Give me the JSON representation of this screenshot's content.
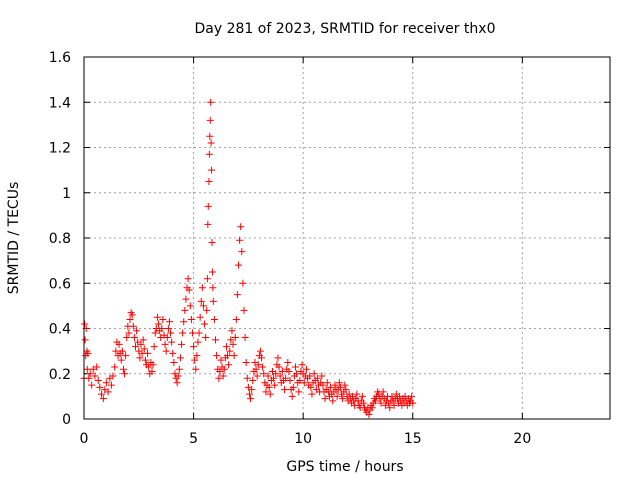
{
  "chart_data": {
    "type": "scatter",
    "title": "Day 281 of 2023, SRMTID for receiver thx0",
    "xlabel": "GPS time / hours",
    "ylabel": "SRMTID / TECUs",
    "xlim": [
      0,
      24
    ],
    "ylim": [
      0,
      1.6
    ],
    "xticks": [
      0,
      5,
      10,
      15,
      20
    ],
    "xtick_labels": [
      "0",
      "5",
      "10",
      "15",
      "20"
    ],
    "yticks": [
      0,
      0.2,
      0.4,
      0.6,
      0.8,
      1,
      1.2,
      1.4,
      1.6
    ],
    "ytick_labels": [
      "0",
      "0.2",
      "0.4",
      "0.6",
      "0.8",
      "1",
      "1.2",
      "1.4",
      "1.6"
    ],
    "grid": true,
    "marker": "+",
    "color": "#ff0000",
    "series": [
      {
        "name": "thx0",
        "points": [
          [
            0.0,
            0.18
          ],
          [
            0.03,
            0.42
          ],
          [
            0.05,
            0.35
          ],
          [
            0.08,
            0.28
          ],
          [
            0.1,
            0.4
          ],
          [
            0.13,
            0.3
          ],
          [
            0.15,
            0.22
          ],
          [
            0.18,
            0.29
          ],
          [
            0.22,
            0.18
          ],
          [
            0.28,
            0.2
          ],
          [
            0.35,
            0.15
          ],
          [
            0.42,
            0.22
          ],
          [
            0.5,
            0.19
          ],
          [
            0.58,
            0.23
          ],
          [
            0.65,
            0.17
          ],
          [
            0.72,
            0.14
          ],
          [
            0.8,
            0.11
          ],
          [
            0.88,
            0.09
          ],
          [
            0.95,
            0.13
          ],
          [
            1.02,
            0.16
          ],
          [
            1.1,
            0.12
          ],
          [
            1.18,
            0.18
          ],
          [
            1.25,
            0.15
          ],
          [
            1.32,
            0.19
          ],
          [
            1.4,
            0.23
          ],
          [
            1.45,
            0.3
          ],
          [
            1.5,
            0.34
          ],
          [
            1.55,
            0.28
          ],
          [
            1.6,
            0.33
          ],
          [
            1.65,
            0.29
          ],
          [
            1.7,
            0.26
          ],
          [
            1.75,
            0.3
          ],
          [
            1.8,
            0.22
          ],
          [
            1.85,
            0.2
          ],
          [
            1.9,
            0.28
          ],
          [
            1.95,
            0.36
          ],
          [
            2.0,
            0.41
          ],
          [
            2.05,
            0.38
          ],
          [
            2.1,
            0.44
          ],
          [
            2.15,
            0.47
          ],
          [
            2.2,
            0.46
          ],
          [
            2.25,
            0.41
          ],
          [
            2.3,
            0.36
          ],
          [
            2.35,
            0.32
          ],
          [
            2.4,
            0.39
          ],
          [
            2.45,
            0.34
          ],
          [
            2.5,
            0.3
          ],
          [
            2.55,
            0.27
          ],
          [
            2.6,
            0.33
          ],
          [
            2.65,
            0.29
          ],
          [
            2.7,
            0.35
          ],
          [
            2.75,
            0.31
          ],
          [
            2.8,
            0.26
          ],
          [
            2.85,
            0.24
          ],
          [
            2.9,
            0.29
          ],
          [
            2.95,
            0.23
          ],
          [
            3.0,
            0.2
          ],
          [
            3.05,
            0.25
          ],
          [
            3.1,
            0.21
          ],
          [
            3.15,
            0.24
          ],
          [
            3.2,
            0.32
          ],
          [
            3.25,
            0.38
          ],
          [
            3.3,
            0.4
          ],
          [
            3.35,
            0.45
          ],
          [
            3.4,
            0.42
          ],
          [
            3.45,
            0.39
          ],
          [
            3.5,
            0.36
          ],
          [
            3.55,
            0.4
          ],
          [
            3.6,
            0.44
          ],
          [
            3.65,
            0.37
          ],
          [
            3.7,
            0.33
          ],
          [
            3.75,
            0.3
          ],
          [
            3.8,
            0.36
          ],
          [
            3.85,
            0.4
          ],
          [
            3.9,
            0.43
          ],
          [
            3.95,
            0.38
          ],
          [
            4.0,
            0.34
          ],
          [
            4.05,
            0.29
          ],
          [
            4.1,
            0.25
          ],
          [
            4.15,
            0.2
          ],
          [
            4.2,
            0.18
          ],
          [
            4.25,
            0.16
          ],
          [
            4.3,
            0.19
          ],
          [
            4.35,
            0.22
          ],
          [
            4.4,
            0.27
          ],
          [
            4.45,
            0.33
          ],
          [
            4.5,
            0.38
          ],
          [
            4.55,
            0.43
          ],
          [
            4.6,
            0.48
          ],
          [
            4.65,
            0.53
          ],
          [
            4.7,
            0.58
          ],
          [
            4.75,
            0.62
          ],
          [
            4.8,
            0.57
          ],
          [
            4.85,
            0.5
          ],
          [
            4.9,
            0.44
          ],
          [
            4.95,
            0.38
          ],
          [
            5.0,
            0.32
          ],
          [
            5.05,
            0.26
          ],
          [
            5.1,
            0.22
          ],
          [
            5.15,
            0.28
          ],
          [
            5.2,
            0.34
          ],
          [
            5.25,
            0.38
          ],
          [
            5.3,
            0.45
          ],
          [
            5.35,
            0.52
          ],
          [
            5.4,
            0.58
          ],
          [
            5.45,
            0.5
          ],
          [
            5.5,
            0.42
          ],
          [
            5.55,
            0.36
          ],
          [
            5.6,
            0.48
          ],
          [
            5.63,
            0.62
          ],
          [
            5.65,
            0.86
          ],
          [
            5.67,
            0.94
          ],
          [
            5.7,
            1.05
          ],
          [
            5.72,
            1.17
          ],
          [
            5.74,
            1.25
          ],
          [
            5.76,
            1.32
          ],
          [
            5.78,
            1.4
          ],
          [
            5.8,
            1.22
          ],
          [
            5.82,
            1.1
          ],
          [
            5.84,
            0.78
          ],
          [
            5.86,
            0.65
          ],
          [
            5.88,
            0.58
          ],
          [
            5.9,
            0.52
          ],
          [
            5.95,
            0.44
          ],
          [
            6.0,
            0.35
          ],
          [
            6.05,
            0.28
          ],
          [
            6.1,
            0.22
          ],
          [
            6.15,
            0.18
          ],
          [
            6.2,
            0.21
          ],
          [
            6.25,
            0.26
          ],
          [
            6.3,
            0.23
          ],
          [
            6.35,
            0.19
          ],
          [
            6.4,
            0.22
          ],
          [
            6.45,
            0.27
          ],
          [
            6.5,
            0.32
          ],
          [
            6.55,
            0.28
          ],
          [
            6.6,
            0.24
          ],
          [
            6.65,
            0.3
          ],
          [
            6.7,
            0.35
          ],
          [
            6.75,
            0.39
          ],
          [
            6.8,
            0.33
          ],
          [
            6.85,
            0.28
          ],
          [
            6.9,
            0.36
          ],
          [
            6.95,
            0.44
          ],
          [
            7.0,
            0.55
          ],
          [
            7.05,
            0.68
          ],
          [
            7.1,
            0.79
          ],
          [
            7.15,
            0.85
          ],
          [
            7.2,
            0.74
          ],
          [
            7.25,
            0.6
          ],
          [
            7.3,
            0.48
          ],
          [
            7.35,
            0.36
          ],
          [
            7.4,
            0.25
          ],
          [
            7.45,
            0.18
          ],
          [
            7.5,
            0.14
          ],
          [
            7.55,
            0.11
          ],
          [
            7.6,
            0.09
          ],
          [
            7.65,
            0.13
          ],
          [
            7.7,
            0.17
          ],
          [
            7.75,
            0.21
          ],
          [
            7.8,
            0.25
          ],
          [
            7.85,
            0.22
          ],
          [
            7.9,
            0.19
          ],
          [
            7.95,
            0.24
          ],
          [
            8.0,
            0.28
          ],
          [
            8.05,
            0.3
          ],
          [
            8.1,
            0.27
          ],
          [
            8.15,
            0.23
          ],
          [
            8.2,
            0.2
          ],
          [
            8.25,
            0.16
          ],
          [
            8.3,
            0.12
          ],
          [
            8.35,
            0.15
          ],
          [
            8.4,
            0.19
          ],
          [
            8.45,
            0.14
          ],
          [
            8.5,
            0.11
          ],
          [
            8.55,
            0.17
          ],
          [
            8.6,
            0.21
          ],
          [
            8.65,
            0.18
          ],
          [
            8.7,
            0.15
          ],
          [
            8.75,
            0.2
          ],
          [
            8.8,
            0.24
          ],
          [
            8.85,
            0.27
          ],
          [
            8.9,
            0.23
          ],
          [
            8.95,
            0.19
          ],
          [
            9.0,
            0.16
          ],
          [
            9.05,
            0.21
          ],
          [
            9.1,
            0.17
          ],
          [
            9.15,
            0.13
          ],
          [
            9.2,
            0.18
          ],
          [
            9.25,
            0.22
          ],
          [
            9.3,
            0.25
          ],
          [
            9.35,
            0.21
          ],
          [
            9.4,
            0.17
          ],
          [
            9.45,
            0.13
          ],
          [
            9.5,
            0.1
          ],
          [
            9.55,
            0.14
          ],
          [
            9.6,
            0.19
          ],
          [
            9.65,
            0.23
          ],
          [
            9.7,
            0.2
          ],
          [
            9.75,
            0.16
          ],
          [
            9.8,
            0.12
          ],
          [
            9.85,
            0.17
          ],
          [
            9.9,
            0.21
          ],
          [
            9.95,
            0.24
          ],
          [
            10.0,
            0.2
          ],
          [
            10.05,
            0.16
          ],
          [
            10.1,
            0.19
          ],
          [
            10.15,
            0.22
          ],
          [
            10.2,
            0.18
          ],
          [
            10.25,
            0.15
          ],
          [
            10.3,
            0.19
          ],
          [
            10.35,
            0.14
          ],
          [
            10.4,
            0.11
          ],
          [
            10.45,
            0.16
          ],
          [
            10.5,
            0.2
          ],
          [
            10.55,
            0.17
          ],
          [
            10.6,
            0.13
          ],
          [
            10.65,
            0.18
          ],
          [
            10.7,
            0.15
          ],
          [
            10.75,
            0.12
          ],
          [
            10.8,
            0.16
          ],
          [
            10.85,
            0.19
          ],
          [
            10.9,
            0.15
          ],
          [
            10.95,
            0.12
          ],
          [
            11.0,
            0.09
          ],
          [
            11.05,
            0.13
          ],
          [
            11.1,
            0.16
          ],
          [
            11.15,
            0.12
          ],
          [
            11.2,
            0.1
          ],
          [
            11.25,
            0.14
          ],
          [
            11.3,
            0.11
          ],
          [
            11.35,
            0.08
          ],
          [
            11.4,
            0.12
          ],
          [
            11.45,
            0.15
          ],
          [
            11.5,
            0.13
          ],
          [
            11.55,
            0.1
          ],
          [
            11.6,
            0.13
          ],
          [
            11.65,
            0.16
          ],
          [
            11.7,
            0.14
          ],
          [
            11.75,
            0.11
          ],
          [
            11.8,
            0.09
          ],
          [
            11.85,
            0.12
          ],
          [
            11.9,
            0.15
          ],
          [
            11.95,
            0.13
          ],
          [
            12.0,
            0.1
          ],
          [
            12.05,
            0.08
          ],
          [
            12.1,
            0.11
          ],
          [
            12.15,
            0.09
          ],
          [
            12.2,
            0.07
          ],
          [
            12.25,
            0.1
          ],
          [
            12.3,
            0.08
          ],
          [
            12.35,
            0.06
          ],
          [
            12.4,
            0.09
          ],
          [
            12.45,
            0.11
          ],
          [
            12.5,
            0.08
          ],
          [
            12.55,
            0.06
          ],
          [
            12.6,
            0.05
          ],
          [
            12.65,
            0.08
          ],
          [
            12.7,
            0.1
          ],
          [
            12.75,
            0.07
          ],
          [
            12.8,
            0.05
          ],
          [
            12.85,
            0.04
          ],
          [
            12.9,
            0.03
          ],
          [
            12.95,
            0.05
          ],
          [
            13.0,
            0.02
          ],
          [
            13.05,
            0.04
          ],
          [
            13.1,
            0.06
          ],
          [
            13.15,
            0.05
          ],
          [
            13.2,
            0.07
          ],
          [
            13.25,
            0.09
          ],
          [
            13.3,
            0.08
          ],
          [
            13.35,
            0.1
          ],
          [
            13.4,
            0.12
          ],
          [
            13.45,
            0.11
          ],
          [
            13.5,
            0.09
          ],
          [
            13.55,
            0.07
          ],
          [
            13.6,
            0.1
          ],
          [
            13.65,
            0.12
          ],
          [
            13.7,
            0.09
          ],
          [
            13.75,
            0.06
          ],
          [
            13.8,
            0.08
          ],
          [
            13.85,
            0.1
          ],
          [
            13.9,
            0.07
          ],
          [
            13.95,
            0.05
          ],
          [
            14.0,
            0.08
          ],
          [
            14.05,
            0.1
          ],
          [
            14.1,
            0.08
          ],
          [
            14.15,
            0.06
          ],
          [
            14.2,
            0.09
          ],
          [
            14.25,
            0.11
          ],
          [
            14.3,
            0.09
          ],
          [
            14.35,
            0.07
          ],
          [
            14.4,
            0.1
          ],
          [
            14.45,
            0.08
          ],
          [
            14.5,
            0.06
          ],
          [
            14.55,
            0.09
          ],
          [
            14.6,
            0.07
          ],
          [
            14.65,
            0.1
          ],
          [
            14.7,
            0.08
          ],
          [
            14.75,
            0.06
          ],
          [
            14.8,
            0.09
          ],
          [
            14.85,
            0.07
          ],
          [
            14.9,
            0.08
          ],
          [
            14.95,
            0.1
          ],
          [
            15.0,
            0.07
          ]
        ]
      }
    ]
  }
}
